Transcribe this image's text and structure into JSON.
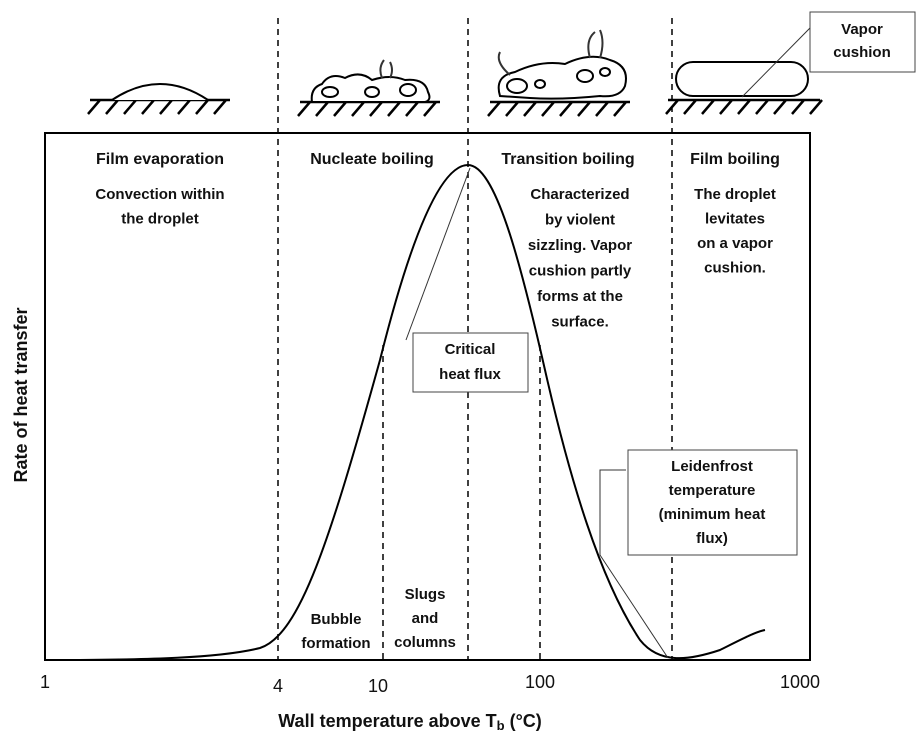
{
  "regions": [
    {
      "name": "Film evaporation",
      "description": [
        "Convection within",
        "the droplet"
      ]
    },
    {
      "name": "Nucleate boiling"
    },
    {
      "name": "Transition boiling",
      "description": [
        "Characterized",
        "by violent",
        "sizzling. Vapor",
        "cushion partly",
        "forms at the",
        "surface."
      ]
    },
    {
      "name": "Film boiling",
      "description": [
        "The droplet",
        "levitates",
        "on a vapor",
        "cushion."
      ]
    }
  ],
  "sub_regions": [
    {
      "lines": [
        "Bubble",
        "formation"
      ]
    },
    {
      "lines": [
        "Slugs",
        "and",
        "columns"
      ]
    }
  ],
  "callouts": {
    "critical_heat_flux": [
      "Critical",
      "heat flux"
    ],
    "leidenfrost": [
      "Leidenfrost",
      "temperature",
      "(minimum heat",
      "flux)"
    ],
    "vapor_cushion": [
      "Vapor",
      "cushion"
    ]
  },
  "axes": {
    "y_label": "Rate of heat transfer",
    "x_label": {
      "text": "Wall temperature above T",
      "subscript": "b",
      "suffix": "(°C)"
    },
    "x_ticks": [
      "1",
      "4",
      "10",
      "100",
      "1000"
    ]
  }
}
